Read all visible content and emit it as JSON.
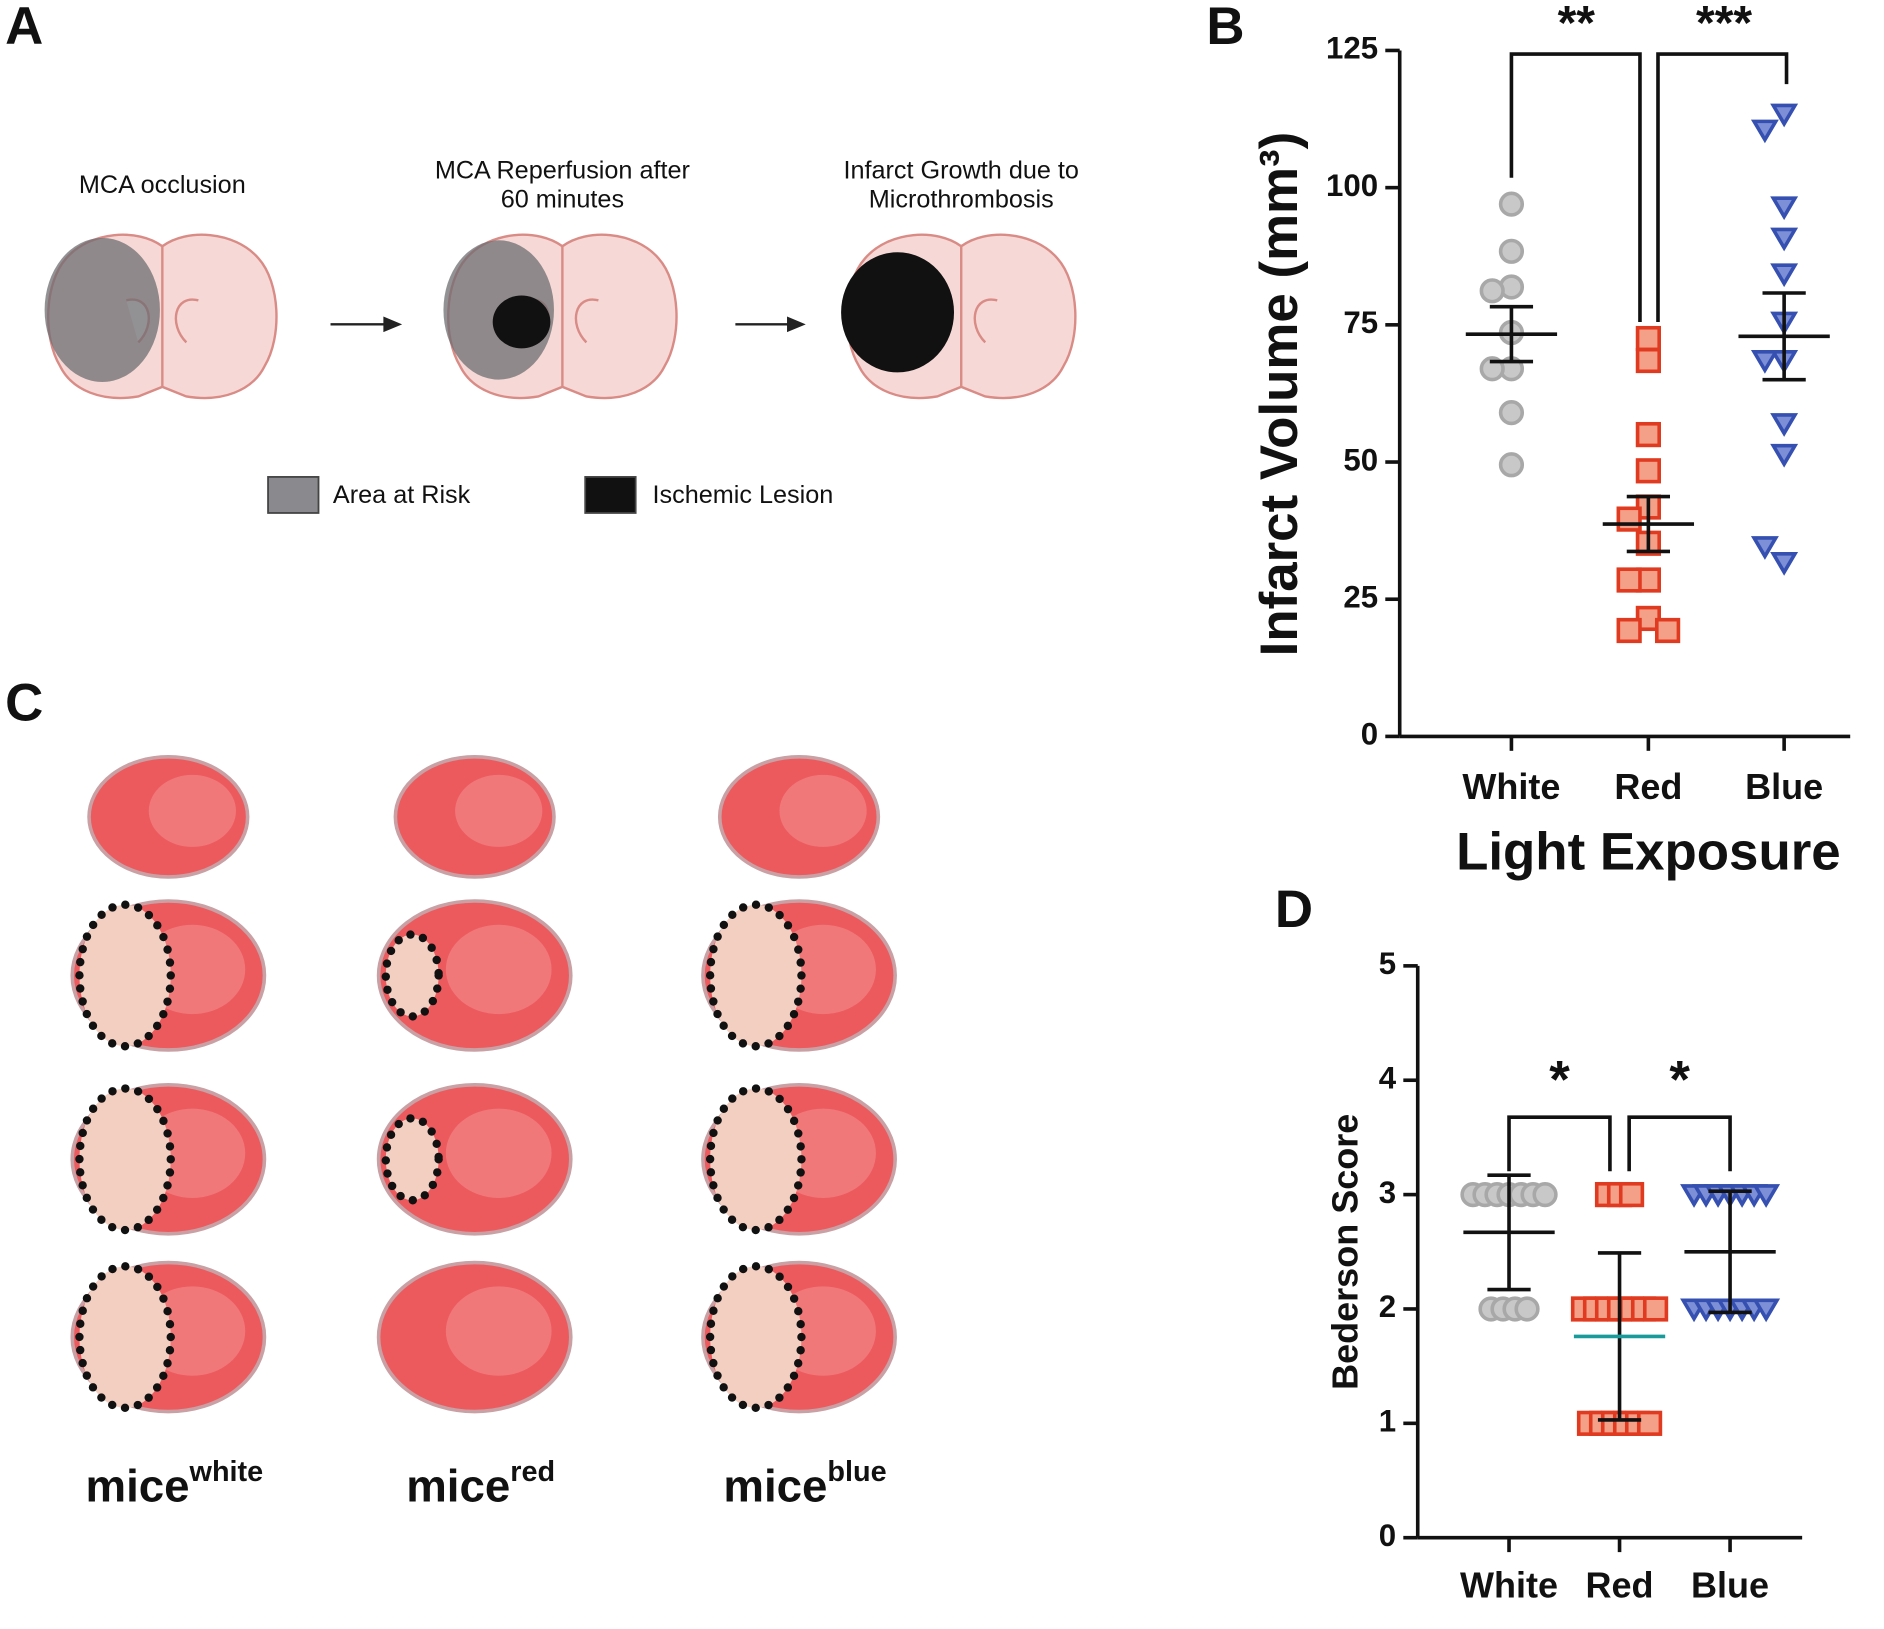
{
  "panel_labels": [
    "A",
    "B",
    "C",
    "D"
  ],
  "diagram": {
    "steps": [
      {
        "label": [
          "MCA occlusion"
        ]
      },
      {
        "label": [
          "MCA Reperfusion after",
          "60 minutes"
        ]
      },
      {
        "label": [
          "Infarct Growth due to",
          "Microthrombosis"
        ]
      }
    ],
    "legend": [
      {
        "label": "Area at Risk",
        "color": "#8a8a8e"
      },
      {
        "label": "Ischemic Lesion",
        "color": "#111111"
      }
    ]
  },
  "photos": {
    "columns": [
      {
        "base": "mice",
        "sup": "white"
      },
      {
        "base": "mice",
        "sup": "red"
      },
      {
        "base": "mice",
        "sup": "blue"
      }
    ]
  },
  "chart_data": [
    {
      "type": "scatter",
      "categories": [
        "White",
        "Red",
        "Blue"
      ],
      "ylabel": "Infarct Volume (mm³)",
      "xlabel": "Light Exposure",
      "ylim": [
        0,
        125
      ],
      "yticks": [
        0,
        25,
        50,
        75,
        100,
        125
      ],
      "groups": [
        {
          "marker": "circle",
          "color": "#c8c8c8",
          "edge": "#a8a8a8",
          "mean_color": "#111111",
          "values": [
            97,
            88.4,
            81.9,
            81.2,
            73.6,
            67,
            67,
            59,
            49.5
          ],
          "mean": 73.3,
          "error": 5.0
        },
        {
          "marker": "square",
          "color": "#f4a088",
          "edge": "#e03a20",
          "mean_color": "#111111",
          "values": [
            72.5,
            68.5,
            55,
            48.4,
            41.8,
            39.6,
            35.2,
            28.5,
            28.5,
            21.5,
            19.3,
            19.3
          ],
          "mean": 38.7,
          "error": 5.0
        },
        {
          "marker": "triangle",
          "color": "#7d8fd6",
          "edge": "#3550b0",
          "mean_color": "#111111",
          "values": [
            113.4,
            110.5,
            96.5,
            90.8,
            84.3,
            75.5,
            68.5,
            68.5,
            57,
            51.4,
            31.7,
            34.6
          ],
          "mean": 72.9,
          "error": 7.9
        }
      ],
      "annotations": [
        {
          "text": "**"
        },
        {
          "text": "***"
        }
      ]
    },
    {
      "type": "dotplot",
      "categories": [
        "White",
        "Red",
        "Blue"
      ],
      "ylabel": "Bederson Score",
      "ylim": [
        0,
        5
      ],
      "yticks": [
        0,
        1,
        2,
        3,
        4,
        5
      ],
      "groups": [
        {
          "marker": "circle",
          "color": "#c8c8c8",
          "edge": "#a8a8a8",
          "mean_color": "#111111",
          "values": [
            3,
            3,
            3,
            3,
            3,
            3,
            3,
            2,
            2,
            2,
            2
          ],
          "mean": 2.67,
          "error": 0.5
        },
        {
          "marker": "square",
          "color": "#f4a088",
          "edge": "#e03a20",
          "mean_color": "#1a9a9a",
          "values": [
            3,
            3,
            3,
            2,
            2,
            2,
            2,
            2,
            2,
            2,
            1,
            1,
            1,
            1,
            1,
            1
          ],
          "mean": 1.76,
          "error": 0.73
        },
        {
          "marker": "triangle",
          "color": "#7d8fd6",
          "edge": "#3550b0",
          "mean_color": "#111111",
          "values": [
            3,
            3,
            3,
            3,
            3,
            3,
            3,
            2,
            2,
            2,
            2,
            2,
            2,
            2
          ],
          "mean": 2.5,
          "error": 0.53
        }
      ],
      "annotations": [
        {
          "text": "*"
        },
        {
          "text": "*"
        }
      ]
    }
  ]
}
